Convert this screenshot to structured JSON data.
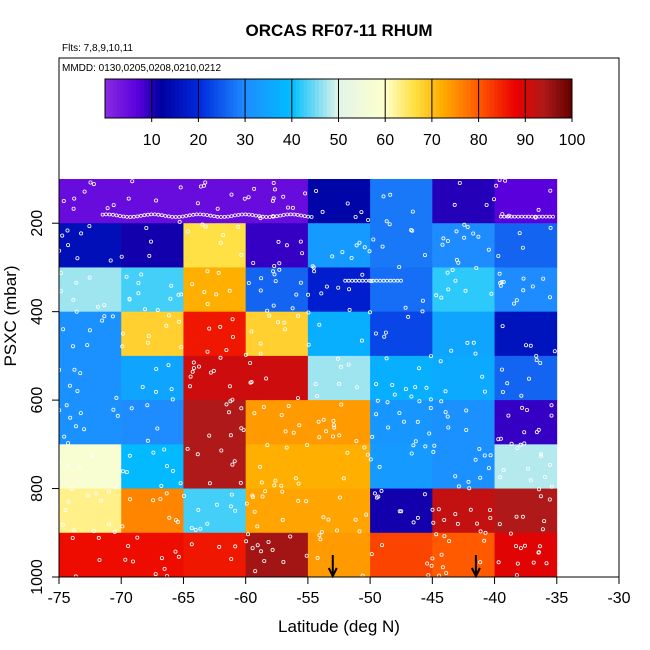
{
  "chart_data": {
    "type": "heatmap",
    "title": "ORCAS RF07-11 RHUM",
    "flights_label": "Flts: 7,8,9,10,11",
    "dates_label": "MMDD: 0130,0205,0208,0210,0212",
    "xlabel": "Latitude (deg N)",
    "ylabel": "PSXC (mbar)",
    "xlim": [
      -75,
      -30
    ],
    "ylim": [
      1000,
      100
    ],
    "x_ticks": [
      -75,
      -70,
      -65,
      -60,
      -55,
      -50,
      -45,
      -40,
      -35,
      -30
    ],
    "x_tick_labels": [
      "-75",
      "-70",
      "-65",
      "-60",
      "-55",
      "-50",
      "-45",
      "-40",
      "-35",
      "-30"
    ],
    "y_ticks": [
      200,
      400,
      600,
      800,
      1000
    ],
    "y_tick_labels": [
      "200",
      "400",
      "600",
      "800",
      "1000"
    ],
    "colorbar": {
      "range": [
        0,
        100
      ],
      "ticks": [
        10,
        20,
        30,
        40,
        50,
        60,
        70,
        80,
        90,
        100
      ],
      "tick_labels": [
        "10",
        "20",
        "30",
        "40",
        "50",
        "60",
        "70",
        "80",
        "90",
        "100"
      ]
    },
    "x_bin_edges": [
      -75,
      -70,
      -65,
      -60,
      -55,
      -50,
      -45,
      -40,
      -35
    ],
    "y_bin_edges": [
      100,
      200,
      300,
      400,
      500,
      600,
      700,
      800,
      900,
      1000
    ],
    "values": [
      [
        5,
        5,
        5,
        5,
        13,
        28,
        10,
        7
      ],
      [
        15,
        11,
        66,
        9,
        33,
        28,
        30,
        26
      ],
      [
        47,
        43,
        72,
        26,
        18,
        27,
        42,
        30
      ],
      [
        31,
        68,
        86,
        68,
        37,
        23,
        35,
        16
      ],
      [
        31,
        35,
        91,
        91,
        47,
        37,
        36,
        26
      ],
      [
        31,
        30,
        94,
        74,
        74,
        32,
        31,
        9
      ],
      [
        58,
        39,
        94,
        72,
        72,
        33,
        31,
        48
      ],
      [
        63,
        76,
        43,
        73,
        73,
        11,
        92,
        94
      ],
      [
        87,
        87,
        86,
        95,
        74,
        82,
        80,
        89
      ]
    ],
    "markers": [
      {
        "type": "arrow",
        "x": -53
      },
      {
        "type": "arrow",
        "x": -41.5
      }
    ]
  }
}
